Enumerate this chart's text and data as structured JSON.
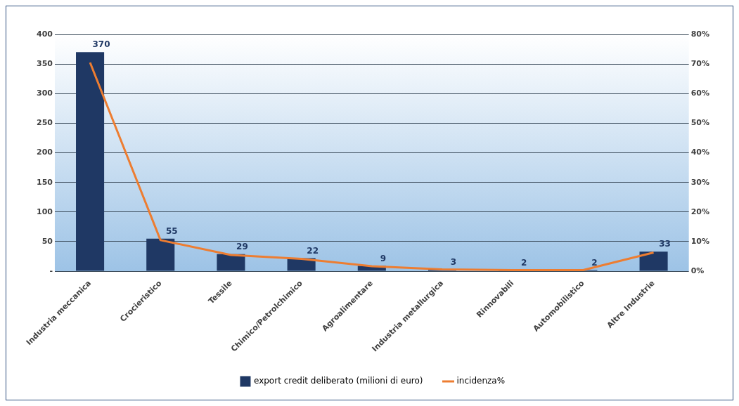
{
  "chart_data": {
    "type": "bar",
    "categories": [
      "Industria meccanica",
      "Crocieristico",
      "Tessile",
      "Chimico/Petrolchimico",
      "Agroalimentare",
      "Industria metallurgica",
      "Rinnovabili",
      "Automobilistico",
      "Altre Industrie"
    ],
    "series": [
      {
        "name": "export credit deliberato (milioni di euro)",
        "color": "#1f3864",
        "values": [
          370,
          55,
          29,
          22,
          9,
          3,
          2,
          2,
          33
        ],
        "value_labels": [
          "370",
          "55",
          "29",
          "22",
          "9",
          "3",
          "2",
          "2",
          "33"
        ]
      },
      {
        "name": "incidenza%",
        "type": "line",
        "axis": "y2",
        "color": "#ed7d31",
        "values": [
          70.5,
          10.5,
          5.5,
          4.2,
          1.7,
          0.6,
          0.4,
          0.4,
          6.3
        ]
      }
    ],
    "ylim": [
      0,
      400
    ],
    "yticks": [
      {
        "value": 0,
        "label": "-"
      },
      50,
      100,
      150,
      200,
      250,
      300,
      350,
      400
    ],
    "y2lim": [
      0,
      80
    ],
    "y2ticks": [
      {
        "value": 0,
        "label": "0%"
      },
      {
        "value": 10,
        "label": "10%"
      },
      {
        "value": 20,
        "label": "20%"
      },
      {
        "value": 30,
        "label": "30%"
      },
      {
        "value": 40,
        "label": "40%"
      },
      {
        "value": 50,
        "label": "50%"
      },
      {
        "value": 60,
        "label": "60%"
      },
      {
        "value": 70,
        "label": "70%"
      },
      {
        "value": 80,
        "label": "80%"
      }
    ],
    "grid": "y",
    "legend": "bottom",
    "marker": "none",
    "line_style": "solid"
  }
}
